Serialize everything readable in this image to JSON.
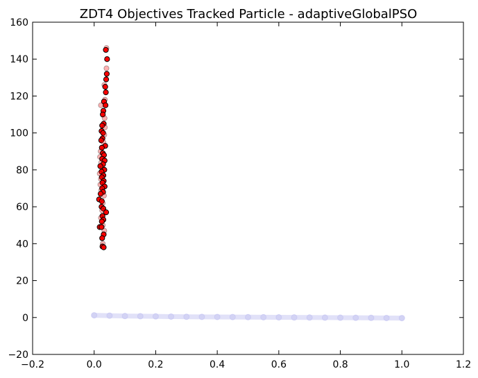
{
  "chart_data": {
    "type": "scatter",
    "title": "ZDT4 Objectives Tracked Particle - adaptiveGlobalPSO",
    "xlabel": "",
    "ylabel": "",
    "xlim": [
      -0.2,
      1.2
    ],
    "ylim": [
      -20,
      160
    ],
    "xticks": [
      -0.2,
      0.0,
      0.2,
      0.4,
      0.6,
      0.8,
      1.0,
      1.2
    ],
    "xtick_labels": [
      "−0.2",
      "0.0",
      "0.2",
      "0.4",
      "0.6",
      "0.8",
      "1.0",
      "1.2"
    ],
    "yticks": [
      -20,
      0,
      20,
      40,
      60,
      80,
      100,
      120,
      140,
      160
    ],
    "ytick_labels": [
      "−20",
      "0",
      "20",
      "40",
      "60",
      "80",
      "100",
      "120",
      "140",
      "160"
    ],
    "grid": false,
    "legend": "none",
    "series": [
      {
        "kind": "tracked-particle-history",
        "color": "#ff0000",
        "edgecolor": "#000000",
        "alpha_range": [
          0.15,
          1.0
        ],
        "points": [
          [
            0.04,
            146
          ],
          [
            0.038,
            145
          ],
          [
            0.042,
            140
          ],
          [
            0.04,
            135
          ],
          [
            0.041,
            132
          ],
          [
            0.039,
            129
          ],
          [
            0.033,
            126
          ],
          [
            0.036,
            125
          ],
          [
            0.038,
            122
          ],
          [
            0.035,
            118
          ],
          [
            0.032,
            117
          ],
          [
            0.037,
            115
          ],
          [
            0.022,
            115
          ],
          [
            0.03,
            112
          ],
          [
            0.028,
            110
          ],
          [
            0.034,
            108
          ],
          [
            0.031,
            105
          ],
          [
            0.026,
            104
          ],
          [
            0.035,
            103
          ],
          [
            0.024,
            101
          ],
          [
            0.029,
            100
          ],
          [
            0.033,
            99
          ],
          [
            0.027,
            97
          ],
          [
            0.023,
            96
          ],
          [
            0.03,
            95
          ],
          [
            0.036,
            93
          ],
          [
            0.025,
            92
          ],
          [
            0.021,
            90
          ],
          [
            0.028,
            89
          ],
          [
            0.032,
            88
          ],
          [
            0.019,
            87
          ],
          [
            0.026,
            86
          ],
          [
            0.034,
            85
          ],
          [
            0.023,
            84
          ],
          [
            0.029,
            83
          ],
          [
            0.02,
            82
          ],
          [
            0.027,
            81
          ],
          [
            0.033,
            80
          ],
          [
            0.024,
            79
          ],
          [
            0.018,
            78
          ],
          [
            0.03,
            77
          ],
          [
            0.025,
            76
          ],
          [
            0.022,
            75
          ],
          [
            0.031,
            74
          ],
          [
            0.027,
            73
          ],
          [
            0.02,
            72
          ],
          [
            0.034,
            71
          ],
          [
            0.026,
            70
          ],
          [
            0.023,
            69
          ],
          [
            0.029,
            68
          ],
          [
            0.021,
            67
          ],
          [
            0.032,
            66
          ],
          [
            0.016,
            64
          ],
          [
            0.025,
            63
          ],
          [
            0.028,
            62
          ],
          [
            0.024,
            60
          ],
          [
            0.03,
            59
          ],
          [
            0.026,
            58
          ],
          [
            0.039,
            57
          ],
          [
            0.027,
            55
          ],
          [
            0.022,
            54
          ],
          [
            0.03,
            53
          ],
          [
            0.025,
            52
          ],
          [
            0.028,
            50
          ],
          [
            0.018,
            49
          ],
          [
            0.024,
            49
          ],
          [
            0.033,
            47
          ],
          [
            0.031,
            45
          ],
          [
            0.026,
            43
          ],
          [
            0.028,
            40
          ],
          [
            0.027,
            38.5
          ],
          [
            0.031,
            38
          ]
        ]
      },
      {
        "kind": "pareto-front-trace",
        "color": "#7f7fe0",
        "edgecolor": "#b0b0f0",
        "alpha": 0.25,
        "points": [
          [
            0.0,
            1.2
          ],
          [
            0.05,
            1.0
          ],
          [
            0.1,
            0.8
          ],
          [
            0.15,
            0.7
          ],
          [
            0.2,
            0.6
          ],
          [
            0.25,
            0.5
          ],
          [
            0.3,
            0.4
          ],
          [
            0.35,
            0.35
          ],
          [
            0.4,
            0.3
          ],
          [
            0.45,
            0.25
          ],
          [
            0.5,
            0.2
          ],
          [
            0.55,
            0.15
          ],
          [
            0.6,
            0.1
          ],
          [
            0.65,
            0.05
          ],
          [
            0.7,
            0.0
          ],
          [
            0.75,
            -0.05
          ],
          [
            0.8,
            -0.1
          ],
          [
            0.85,
            -0.15
          ],
          [
            0.9,
            -0.2
          ],
          [
            0.95,
            -0.25
          ],
          [
            1.0,
            -0.3
          ]
        ]
      }
    ]
  }
}
